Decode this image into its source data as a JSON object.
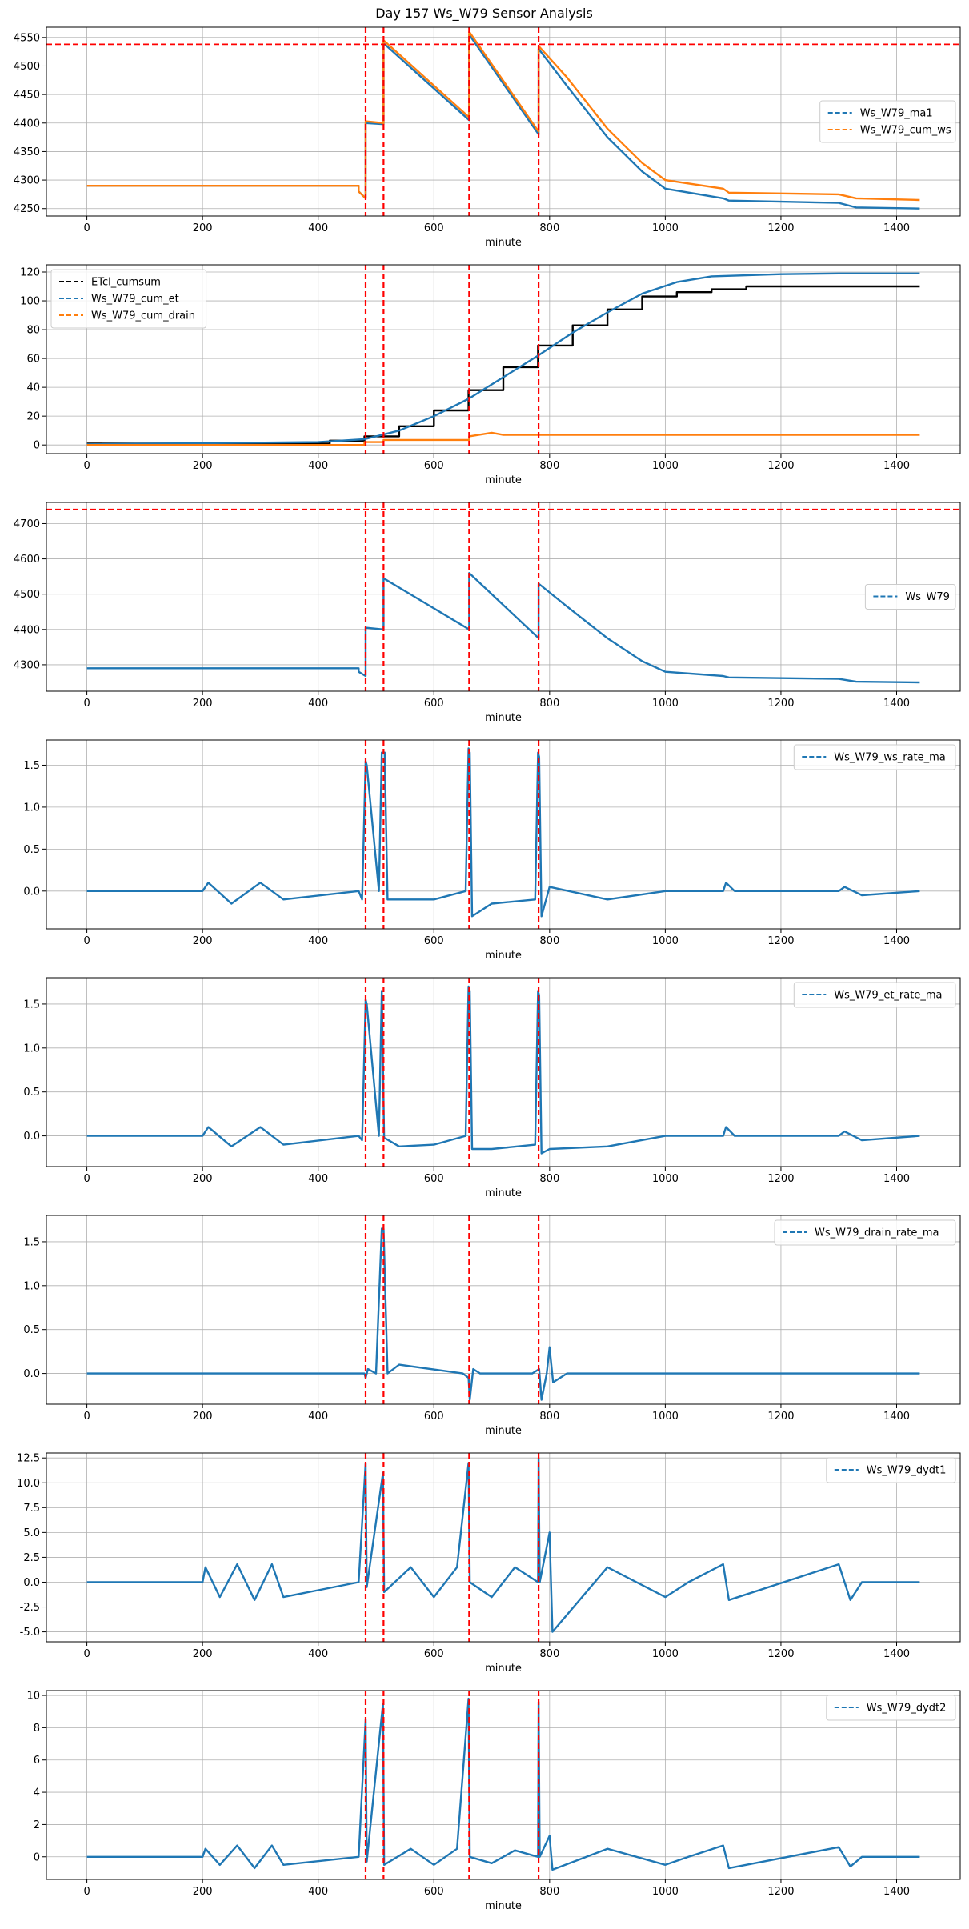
{
  "figure": {
    "title": "Day 157 Ws_W79 Sensor Analysis"
  },
  "colors": {
    "blue": "#1f77b4",
    "orange": "#ff7f0e",
    "black": "#000000",
    "red": "#ff0000",
    "grid": "#b0b0b0"
  },
  "chart_data": [
    {
      "type": "line",
      "xlabel": "minute",
      "xlim": [
        -70,
        1510
      ],
      "ylim": [
        4237,
        4568
      ],
      "xticks": [
        0,
        200,
        400,
        600,
        800,
        1000,
        1200,
        1400
      ],
      "yticks": [
        4250,
        4300,
        4350,
        4400,
        4450,
        4500,
        4550
      ],
      "yticklabels": [
        "4250",
        "4300",
        "4350",
        "4400",
        "4450",
        "4500",
        "4550"
      ],
      "legend_position": "center-right",
      "vlines": [
        482,
        513,
        661,
        781
      ],
      "hline": 4538,
      "series": [
        {
          "name": "Ws_W79_ma1",
          "color": "blue",
          "x": [
            0,
            470,
            470,
            482,
            482,
            513,
            513,
            661,
            661,
            781,
            781,
            830,
            900,
            960,
            1000,
            1100,
            1110,
            1300,
            1330,
            1440
          ],
          "y": [
            4290,
            4290,
            4280,
            4268,
            4400,
            4398,
            4540,
            4405,
            4555,
            4380,
            4530,
            4465,
            4375,
            4315,
            4285,
            4268,
            4264,
            4260,
            4252,
            4250
          ]
        },
        {
          "name": "Ws_W79_cum_ws",
          "color": "orange",
          "x": [
            0,
            470,
            470,
            482,
            482,
            513,
            513,
            661,
            661,
            781,
            781,
            830,
            900,
            960,
            1000,
            1100,
            1110,
            1300,
            1330,
            1440
          ],
          "y": [
            4290,
            4290,
            4280,
            4268,
            4403,
            4400,
            4545,
            4410,
            4560,
            4385,
            4535,
            4480,
            4390,
            4330,
            4300,
            4285,
            4278,
            4275,
            4268,
            4265
          ]
        }
      ]
    },
    {
      "type": "line",
      "xlabel": "minute",
      "xlim": [
        -70,
        1510
      ],
      "ylim": [
        -6,
        125
      ],
      "xticks": [
        0,
        200,
        400,
        600,
        800,
        1000,
        1200,
        1400
      ],
      "yticks": [
        0,
        20,
        40,
        60,
        80,
        100,
        120
      ],
      "yticklabels": [
        "0",
        "20",
        "40",
        "60",
        "80",
        "100",
        "120"
      ],
      "legend_position": "upper-left",
      "vlines": [
        482,
        513,
        661,
        781
      ],
      "series": [
        {
          "name": "ETcl_cumsum",
          "color": "black",
          "x": [
            0,
            420,
            420,
            480,
            480,
            540,
            540,
            600,
            600,
            660,
            660,
            720,
            720,
            780,
            780,
            840,
            840,
            900,
            900,
            960,
            960,
            1020,
            1020,
            1080,
            1080,
            1140,
            1140,
            1440
          ],
          "y": [
            1,
            1,
            3,
            3,
            6,
            6,
            13,
            13,
            24,
            24,
            38,
            38,
            54,
            54,
            69,
            69,
            83,
            83,
            94,
            94,
            103,
            103,
            106,
            106,
            108,
            108,
            110,
            110
          ]
        },
        {
          "name": "Ws_W79_cum_et",
          "color": "blue",
          "x": [
            0,
            400,
            480,
            540,
            600,
            660,
            720,
            780,
            840,
            900,
            960,
            1020,
            1080,
            1200,
            1300,
            1440
          ],
          "y": [
            0.5,
            2,
            4,
            10,
            20,
            32,
            47,
            62,
            78,
            92,
            105,
            113,
            117,
            118.5,
            119,
            119
          ]
        },
        {
          "name": "Ws_W79_cum_drain",
          "color": "orange",
          "x": [
            0,
            480,
            480,
            513,
            513,
            661,
            661,
            700,
            720,
            1440
          ],
          "y": [
            0,
            0,
            2,
            2,
            3.5,
            3.5,
            6,
            8.5,
            7,
            7
          ]
        }
      ]
    },
    {
      "type": "line",
      "xlabel": "minute",
      "xlim": [
        -70,
        1510
      ],
      "ylim": [
        4225,
        4760
      ],
      "xticks": [
        0,
        200,
        400,
        600,
        800,
        1000,
        1200,
        1400
      ],
      "yticks": [
        4300,
        4400,
        4500,
        4600,
        4700
      ],
      "yticklabels": [
        "4300",
        "4400",
        "4500",
        "4600",
        "4700"
      ],
      "legend_position": "center-right",
      "vlines": [
        482,
        513,
        661,
        781
      ],
      "hline": 4740,
      "series": [
        {
          "name": "Ws_W79",
          "color": "blue",
          "x": [
            0,
            470,
            470,
            482,
            482,
            513,
            513,
            661,
            661,
            781,
            781,
            830,
            900,
            960,
            1000,
            1100,
            1110,
            1300,
            1330,
            1440
          ],
          "y": [
            4290,
            4290,
            4280,
            4268,
            4405,
            4400,
            4545,
            4400,
            4560,
            4375,
            4530,
            4465,
            4375,
            4310,
            4280,
            4268,
            4264,
            4260,
            4252,
            4250
          ]
        }
      ]
    },
    {
      "type": "line",
      "xlabel": "minute",
      "xlim": [
        -70,
        1510
      ],
      "ylim": [
        -0.45,
        1.8
      ],
      "xticks": [
        0,
        200,
        400,
        600,
        800,
        1000,
        1200,
        1400
      ],
      "yticks": [
        0.0,
        0.5,
        1.0,
        1.5
      ],
      "yticklabels": [
        "0.0",
        "0.5",
        "1.0",
        "1.5"
      ],
      "legend_position": "upper-right",
      "vlines": [
        482,
        513,
        661,
        781
      ],
      "series": [
        {
          "name": "Ws_W79_ws_rate_ma",
          "color": "blue",
          "x": [
            0,
            200,
            210,
            250,
            300,
            340,
            470,
            476,
            482,
            484,
            505,
            510,
            515,
            520,
            600,
            655,
            660,
            662,
            666,
            700,
            775,
            780,
            782,
            786,
            800,
            900,
            1000,
            1100,
            1105,
            1120,
            1300,
            1310,
            1340,
            1440
          ],
          "y": [
            0,
            0,
            0.1,
            -0.15,
            0.1,
            -0.1,
            0,
            -0.1,
            1.55,
            1.5,
            0,
            1.65,
            1.65,
            -0.1,
            -0.1,
            0,
            1.7,
            1.65,
            -0.3,
            -0.15,
            -0.1,
            1.65,
            1.6,
            -0.3,
            0.05,
            -0.1,
            0,
            0,
            0.1,
            0,
            0,
            0.05,
            -0.05,
            0
          ]
        }
      ]
    },
    {
      "type": "line",
      "xlabel": "minute",
      "xlim": [
        -70,
        1510
      ],
      "ylim": [
        -0.35,
        1.8
      ],
      "xticks": [
        0,
        200,
        400,
        600,
        800,
        1000,
        1200,
        1400
      ],
      "yticks": [
        0.0,
        0.5,
        1.0,
        1.5
      ],
      "yticklabels": [
        "0.0",
        "0.5",
        "1.0",
        "1.5"
      ],
      "legend_position": "upper-right",
      "vlines": [
        482,
        513,
        661,
        781
      ],
      "series": [
        {
          "name": "Ws_W79_et_rate_ma",
          "color": "blue",
          "x": [
            0,
            200,
            210,
            250,
            300,
            340,
            470,
            476,
            482,
            484,
            505,
            510,
            514,
            540,
            600,
            655,
            660,
            662,
            666,
            700,
            775,
            780,
            782,
            786,
            800,
            900,
            1000,
            1100,
            1105,
            1120,
            1300,
            1310,
            1340,
            1440
          ],
          "y": [
            0,
            0,
            0.1,
            -0.12,
            0.1,
            -0.1,
            0,
            -0.05,
            1.55,
            1.5,
            0,
            1.65,
            -0.02,
            -0.12,
            -0.1,
            0,
            1.7,
            1.65,
            -0.15,
            -0.15,
            -0.1,
            1.65,
            1.6,
            -0.2,
            -0.15,
            -0.12,
            0,
            0,
            0.1,
            0,
            0,
            0.05,
            -0.05,
            0
          ]
        }
      ]
    },
    {
      "type": "line",
      "xlabel": "minute",
      "xlim": [
        -70,
        1510
      ],
      "ylim": [
        -0.35,
        1.8
      ],
      "xticks": [
        0,
        200,
        400,
        600,
        800,
        1000,
        1200,
        1400
      ],
      "yticks": [
        0.0,
        0.5,
        1.0,
        1.5
      ],
      "yticklabels": [
        "0.0",
        "0.5",
        "1.0",
        "1.5"
      ],
      "legend_position": "upper-right",
      "vlines": [
        482,
        513,
        661,
        781
      ],
      "series": [
        {
          "name": "Ws_W79_drain_rate_ma",
          "color": "blue",
          "x": [
            0,
            480,
            482,
            486,
            500,
            510,
            513,
            520,
            540,
            650,
            660,
            662,
            668,
            680,
            770,
            782,
            786,
            795,
            800,
            806,
            830,
            1440
          ],
          "y": [
            0,
            0,
            -0.05,
            0.05,
            0,
            1.65,
            1.65,
            0,
            0.1,
            0,
            -0.05,
            -0.3,
            0.05,
            0,
            0,
            0.05,
            -0.3,
            0,
            0.3,
            -0.1,
            0,
            0
          ]
        }
      ]
    },
    {
      "type": "line",
      "xlabel": "minute",
      "xlim": [
        -70,
        1510
      ],
      "ylim": [
        -6,
        13
      ],
      "xticks": [
        0,
        200,
        400,
        600,
        800,
        1000,
        1200,
        1400
      ],
      "yticks": [
        -5,
        -2.5,
        0,
        2.5,
        5,
        7.5,
        10,
        12.5
      ],
      "yticklabels": [
        "-5.0",
        "-2.5",
        "0.0",
        "2.5",
        "5.0",
        "7.5",
        "10.0",
        "12.5"
      ],
      "legend_position": "upper-right",
      "vlines": [
        482,
        513,
        661,
        781
      ],
      "series": [
        {
          "name": "Ws_W79_dydt1",
          "color": "blue",
          "x": [
            0,
            200,
            205,
            230,
            260,
            290,
            320,
            340,
            470,
            482,
            484,
            512,
            514,
            560,
            600,
            640,
            660,
            662,
            700,
            740,
            780,
            781,
            783,
            800,
            805,
            900,
            1000,
            1040,
            1100,
            1110,
            1300,
            1320,
            1340,
            1440
          ],
          "y": [
            0,
            0,
            1.5,
            -1.5,
            1.8,
            -1.8,
            1.8,
            -1.5,
            0,
            12,
            -0.5,
            11,
            -1,
            1.5,
            -1.5,
            1.5,
            12,
            0,
            -1.5,
            1.5,
            0,
            12.5,
            0,
            5,
            -5,
            1.5,
            -1.5,
            0,
            1.8,
            -1.8,
            1.8,
            -1.8,
            0,
            0
          ]
        }
      ]
    },
    {
      "type": "line",
      "xlabel": "minute",
      "xlim": [
        -70,
        1510
      ],
      "ylim": [
        -1.4,
        10.3
      ],
      "xticks": [
        0,
        200,
        400,
        600,
        800,
        1000,
        1200,
        1400
      ],
      "yticks": [
        0,
        2,
        4,
        6,
        8,
        10
      ],
      "yticklabels": [
        "0",
        "2",
        "4",
        "6",
        "8",
        "10"
      ],
      "legend_position": "upper-right",
      "vlines": [
        482,
        513,
        661,
        781
      ],
      "series": [
        {
          "name": "Ws_W79_dydt2",
          "color": "blue",
          "x": [
            0,
            200,
            205,
            230,
            260,
            290,
            320,
            340,
            470,
            482,
            484,
            512,
            514,
            560,
            600,
            640,
            660,
            662,
            700,
            740,
            780,
            781,
            783,
            800,
            805,
            900,
            1000,
            1040,
            1100,
            1110,
            1300,
            1320,
            1340,
            1440
          ],
          "y": [
            0,
            0,
            0.5,
            -0.5,
            0.7,
            -0.7,
            0.7,
            -0.5,
            0,
            8.5,
            -0.3,
            9.5,
            -0.5,
            0.5,
            -0.5,
            0.5,
            9.8,
            0,
            -0.4,
            0.4,
            0,
            9.6,
            0,
            1.3,
            -0.8,
            0.5,
            -0.5,
            0,
            0.7,
            -0.7,
            0.6,
            -0.6,
            0,
            0
          ]
        }
      ]
    }
  ]
}
